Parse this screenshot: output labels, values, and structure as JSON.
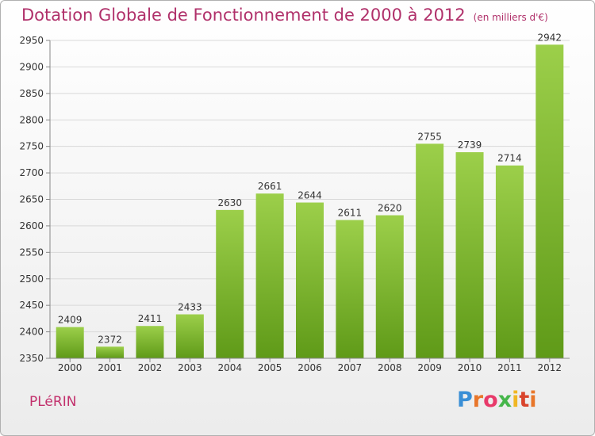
{
  "header": {
    "title": "Dotation Globale de Fonctionnement de 2000 à 2012",
    "subtitle": "(en milliers d'€)"
  },
  "footer": {
    "commune": "PLéRIN",
    "brand": "Proxiti"
  },
  "colors": {
    "title": "#b0306a",
    "bar_top": "#9ccf4a",
    "bar_bottom": "#5f9a18",
    "grid": "#d9d9d9"
  },
  "chart_data": {
    "type": "bar",
    "categories": [
      "2000",
      "2001",
      "2002",
      "2003",
      "2004",
      "2005",
      "2006",
      "2007",
      "2008",
      "2009",
      "2010",
      "2011",
      "2012"
    ],
    "values": [
      2409,
      2372,
      2411,
      2433,
      2630,
      2661,
      2644,
      2611,
      2620,
      2755,
      2739,
      2714,
      2942
    ],
    "title": "Dotation Globale de Fonctionnement de 2000 à 2012",
    "subtitle": "(en milliers d'€)",
    "xlabel": "",
    "ylabel": "",
    "ylim": [
      2350,
      2950
    ],
    "yticks": [
      2350,
      2400,
      2450,
      2500,
      2550,
      2600,
      2650,
      2700,
      2750,
      2800,
      2850,
      2900,
      2950
    ],
    "grid": true,
    "data_labels": true
  }
}
